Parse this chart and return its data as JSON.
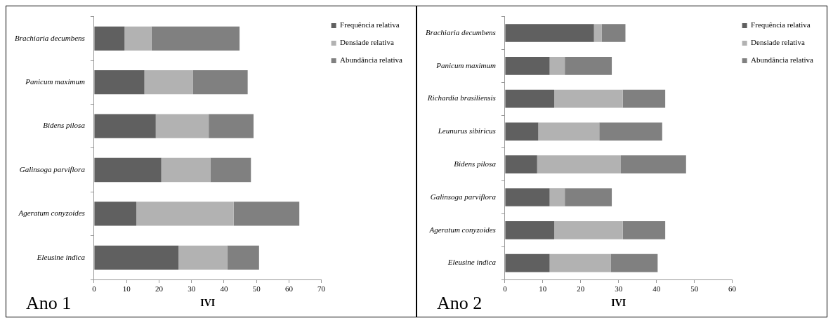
{
  "chart_data": [
    {
      "type": "bar",
      "orientation": "horizontal",
      "stacked": true,
      "categories": [
        "Brachiaria decumbens",
        "Panicum maximum",
        "Bidens pilosa",
        "Galinsoga parviflora",
        "Ageratum conyzoides",
        "Eleusine indica"
      ],
      "series": [
        {
          "name": "Frequência relativa",
          "color": "#606060",
          "values": [
            9.4,
            15.5,
            19.0,
            20.7,
            13.0,
            26.0
          ]
        },
        {
          "name": "Densiade relativa",
          "color": "#b2b2b2",
          "values": [
            8.3,
            15.0,
            16.3,
            15.1,
            30.0,
            15.0
          ]
        },
        {
          "name": "Abundância relativa",
          "color": "#808080",
          "values": [
            27.1,
            16.8,
            13.8,
            12.5,
            20.2,
            9.8
          ]
        }
      ],
      "xlim": [
        0,
        70
      ],
      "xticks": [
        0,
        10,
        20,
        30,
        40,
        50,
        60,
        70
      ],
      "xlabel": "IVI",
      "grid": false,
      "legend": "top right",
      "annotations": [
        "Ano 1"
      ]
    },
    {
      "type": "bar",
      "orientation": "horizontal",
      "stacked": true,
      "categories": [
        "Brachiaria decumbens",
        "Panicum maximum",
        "Richardia brasiliensis",
        "Leunurus sibiricus",
        "Bidens pilosa",
        "Galinsoga parviflora",
        "Ageratum conyzoides",
        "Eleusine indica"
      ],
      "series": [
        {
          "name": "Frequência relativa",
          "color": "#606060",
          "values": [
            23.5,
            11.8,
            13.0,
            8.8,
            8.5,
            11.8,
            13.0,
            11.8
          ]
        },
        {
          "name": "Densiade relativa",
          "color": "#b2b2b2",
          "values": [
            2.0,
            4.0,
            18.1,
            16.1,
            22.1,
            4.0,
            18.1,
            16.1
          ]
        },
        {
          "name": "Abundância relativa",
          "color": "#808080",
          "values": [
            6.3,
            12.4,
            11.2,
            16.6,
            17.2,
            12.4,
            11.2,
            12.4
          ]
        }
      ],
      "xlim": [
        0,
        60
      ],
      "xticks": [
        0,
        10,
        20,
        30,
        40,
        50,
        60
      ],
      "xlabel": "IVI",
      "grid": false,
      "legend": "top right",
      "annotations": [
        "Ano 2"
      ]
    }
  ]
}
